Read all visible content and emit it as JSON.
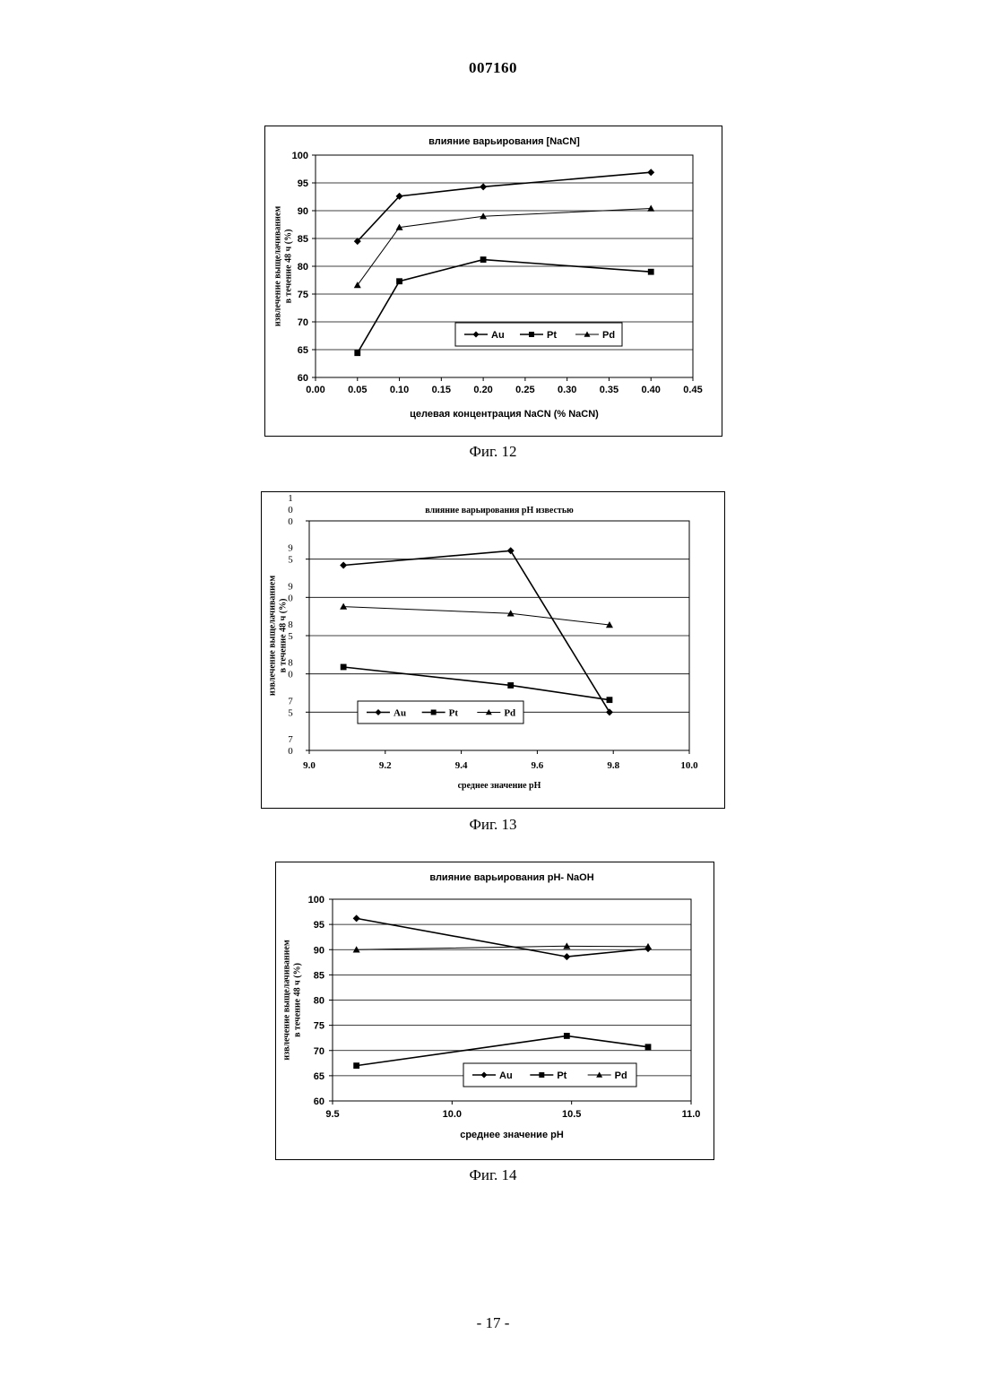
{
  "page": {
    "header": "007160",
    "page_number": "- 17 -"
  },
  "captions": [
    "Фиг. 12",
    "Фиг. 13",
    "Фиг. 14"
  ],
  "chart_data": [
    {
      "type": "line",
      "title": "влияние варьирования [NaCN]",
      "xlabel": "целевая концентрация NaCN (% NaCN)",
      "ylabel": [
        "извлечение выщелачиванием",
        "в течение 48 ч (%)"
      ],
      "xlim": [
        0,
        0.45
      ],
      "ylim": [
        60,
        100
      ],
      "xticks": [
        0.0,
        0.05,
        0.1,
        0.15,
        0.2,
        0.25,
        0.3,
        0.35,
        0.4,
        0.45
      ],
      "xtick_labels": [
        "0.00",
        "0.05",
        "0.10",
        "0.15",
        "0.20",
        "0.25",
        "0.30",
        "0.35",
        "0.40",
        "0.45"
      ],
      "yticks": [
        60,
        65,
        70,
        75,
        80,
        85,
        90,
        95,
        100
      ],
      "ytick_labels": [
        "60",
        "65",
        "70",
        "75",
        "80",
        "85",
        "90",
        "95",
        "100"
      ],
      "grid": "horizontal",
      "legend_position": "lower-right",
      "series": [
        {
          "name": "Au",
          "marker": "diamond",
          "x": [
            0.05,
            0.1,
            0.2,
            0.4
          ],
          "y": [
            84.5,
            92.6,
            94.3,
            96.9
          ]
        },
        {
          "name": "Pt",
          "marker": "square",
          "x": [
            0.05,
            0.1,
            0.2,
            0.4
          ],
          "y": [
            64.4,
            77.3,
            81.2,
            79.0
          ]
        },
        {
          "name": "Pd",
          "marker": "triangle",
          "x": [
            0.05,
            0.1,
            0.2,
            0.4
          ],
          "y": [
            76.6,
            87.0,
            89.0,
            90.4
          ]
        }
      ]
    },
    {
      "type": "line",
      "title": "влияние варьирования рН известью",
      "xlabel": "среднее значение рН",
      "ylabel": [
        "извлечение выщелачиванием",
        "в течение 48 ч (%)"
      ],
      "xlim": [
        9.0,
        10.0
      ],
      "ylim": [
        70,
        100
      ],
      "xticks": [
        9.0,
        9.2,
        9.4,
        9.6,
        9.8,
        10.0
      ],
      "xtick_labels": [
        "9.0",
        "9.2",
        "9.4",
        "9.6",
        "9.8",
        "10.0"
      ],
      "yticks": [
        70,
        75,
        80,
        85,
        90,
        95,
        100
      ],
      "ytick_labels": [
        "7\n0",
        "7\n5",
        "8\n0",
        "8\n5",
        "9\n0",
        "9\n5",
        "1\n0\n0"
      ],
      "grid": "horizontal",
      "legend_position": "lower-center",
      "series": [
        {
          "name": "Au",
          "marker": "diamond",
          "x": [
            9.09,
            9.53,
            9.79
          ],
          "y": [
            94.2,
            96.1,
            75.0
          ]
        },
        {
          "name": "Pt",
          "marker": "square",
          "x": [
            9.09,
            9.53,
            9.79
          ],
          "y": [
            80.9,
            78.5,
            76.6
          ]
        },
        {
          "name": "Pd",
          "marker": "triangle",
          "x": [
            9.09,
            9.53,
            9.79
          ],
          "y": [
            88.8,
            87.9,
            86.4
          ]
        }
      ]
    },
    {
      "type": "line",
      "title": "влияние варьирования рН- NaOH",
      "xlabel": "среднее значение рН",
      "ylabel": [
        "извлечение выщелачиванием",
        "в течение 48 ч (%)"
      ],
      "xlim": [
        9.5,
        11.0
      ],
      "ylim": [
        60,
        100
      ],
      "xticks": [
        9.5,
        10.0,
        10.5,
        11.0
      ],
      "xtick_labels": [
        "9.5",
        "10.0",
        "10.5",
        "11.0"
      ],
      "yticks": [
        60,
        65,
        70,
        75,
        80,
        85,
        90,
        95,
        100
      ],
      "ytick_labels": [
        "60",
        "65",
        "70",
        "75",
        "80",
        "85",
        "90",
        "95",
        "100"
      ],
      "grid": "horizontal",
      "legend_position": "lower-right",
      "series": [
        {
          "name": "Au",
          "marker": "diamond",
          "x": [
            9.6,
            10.48,
            10.82
          ],
          "y": [
            96.2,
            88.6,
            90.2
          ]
        },
        {
          "name": "Pt",
          "marker": "square",
          "x": [
            9.6,
            10.48,
            10.82
          ],
          "y": [
            67.0,
            72.9,
            70.7
          ]
        },
        {
          "name": "Pd",
          "marker": "triangle",
          "x": [
            9.6,
            10.48,
            10.82
          ],
          "y": [
            90.0,
            90.7,
            90.6
          ]
        }
      ]
    }
  ]
}
